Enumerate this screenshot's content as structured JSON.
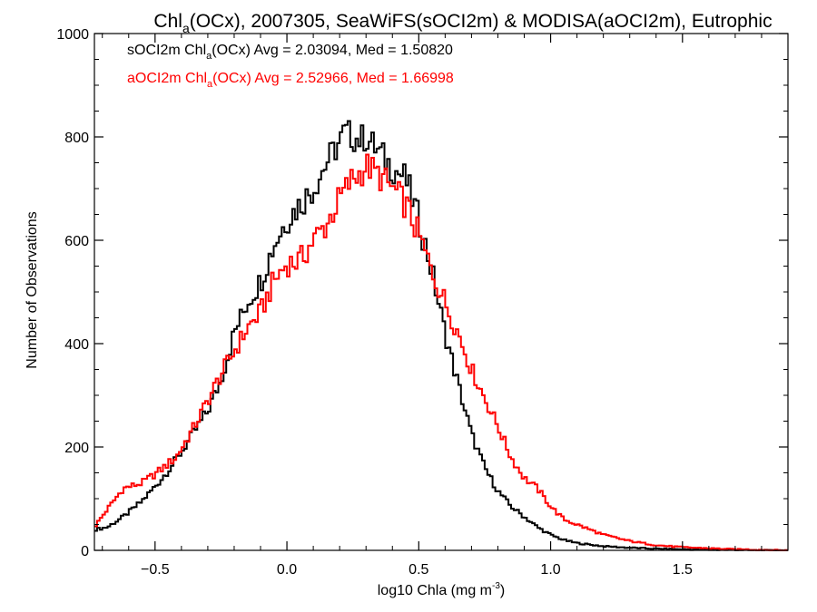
{
  "chart_data": {
    "type": "line",
    "step": true,
    "title": {
      "prefix": "Chl",
      "sub": "a",
      "suffix": "(OCx), 2007305, SeaWiFS(sOCI2m) & MODISA(aOCI2m), Eutrophic"
    },
    "xlabel": {
      "text": "log10 Chla (mg m",
      "sup": "-3",
      "close": ")"
    },
    "ylabel": "Number of Observations",
    "xlim": [
      -0.73,
      1.9
    ],
    "ylim": [
      0,
      1000
    ],
    "xticks": [
      -0.5,
      0.0,
      0.5,
      1.0,
      1.5
    ],
    "xtick_labels": [
      "−0.5",
      "0.0",
      "0.5",
      "1.0",
      "1.5"
    ],
    "yticks": [
      0,
      200,
      400,
      600,
      800,
      1000
    ],
    "ytick_labels": [
      "0",
      "200",
      "400",
      "600",
      "800",
      "1000"
    ],
    "legend_position": "top-left",
    "series": [
      {
        "label_prefix": "sOCI2m Chl",
        "label_sub": "a",
        "label_suffix": "(OCx) Avg = 2.03094, Med = 1.50820",
        "color": "#000000",
        "points": [
          [
            -0.73,
            40
          ],
          [
            -0.68,
            45
          ],
          [
            -0.62,
            65
          ],
          [
            -0.55,
            95
          ],
          [
            -0.48,
            135
          ],
          [
            -0.42,
            175
          ],
          [
            -0.35,
            230
          ],
          [
            -0.3,
            270
          ],
          [
            -0.25,
            330
          ],
          [
            -0.2,
            420
          ],
          [
            -0.15,
            480
          ],
          [
            -0.1,
            520
          ],
          [
            -0.05,
            590
          ],
          [
            0.0,
            640
          ],
          [
            0.05,
            670
          ],
          [
            0.1,
            700
          ],
          [
            0.15,
            750
          ],
          [
            0.2,
            790
          ],
          [
            0.22,
            810
          ],
          [
            0.25,
            800
          ],
          [
            0.28,
            795
          ],
          [
            0.3,
            800
          ],
          [
            0.35,
            770
          ],
          [
            0.4,
            740
          ],
          [
            0.45,
            720
          ],
          [
            0.5,
            640
          ],
          [
            0.55,
            540
          ],
          [
            0.6,
            420
          ],
          [
            0.65,
            320
          ],
          [
            0.7,
            225
          ],
          [
            0.75,
            160
          ],
          [
            0.8,
            115
          ],
          [
            0.85,
            85
          ],
          [
            0.9,
            65
          ],
          [
            0.95,
            45
          ],
          [
            1.0,
            30
          ],
          [
            1.05,
            20
          ],
          [
            1.1,
            14
          ],
          [
            1.2,
            8
          ],
          [
            1.3,
            5
          ],
          [
            1.4,
            3
          ],
          [
            1.5,
            2
          ],
          [
            1.6,
            1
          ],
          [
            1.7,
            1
          ],
          [
            1.8,
            0
          ],
          [
            1.9,
            0
          ]
        ]
      },
      {
        "label_prefix": "aOCI2m Chl",
        "label_sub": "a",
        "label_suffix": "(OCx) Avg = 2.52966, Med = 1.66998",
        "color": "#ff0000",
        "points": [
          [
            -0.73,
            45
          ],
          [
            -0.68,
            80
          ],
          [
            -0.62,
            120
          ],
          [
            -0.55,
            130
          ],
          [
            -0.48,
            155
          ],
          [
            -0.42,
            180
          ],
          [
            -0.35,
            240
          ],
          [
            -0.3,
            290
          ],
          [
            -0.25,
            340
          ],
          [
            -0.2,
            385
          ],
          [
            -0.15,
            430
          ],
          [
            -0.1,
            460
          ],
          [
            -0.05,
            520
          ],
          [
            0.0,
            555
          ],
          [
            0.05,
            560
          ],
          [
            0.1,
            600
          ],
          [
            0.15,
            630
          ],
          [
            0.2,
            680
          ],
          [
            0.25,
            720
          ],
          [
            0.28,
            730
          ],
          [
            0.3,
            745
          ],
          [
            0.35,
            725
          ],
          [
            0.4,
            700
          ],
          [
            0.45,
            670
          ],
          [
            0.5,
            610
          ],
          [
            0.55,
            540
          ],
          [
            0.6,
            480
          ],
          [
            0.65,
            420
          ],
          [
            0.7,
            350
          ],
          [
            0.75,
            295
          ],
          [
            0.8,
            240
          ],
          [
            0.85,
            180
          ],
          [
            0.9,
            140
          ],
          [
            0.95,
            120
          ],
          [
            1.0,
            85
          ],
          [
            1.05,
            60
          ],
          [
            1.1,
            50
          ],
          [
            1.2,
            30
          ],
          [
            1.3,
            18
          ],
          [
            1.4,
            10
          ],
          [
            1.5,
            6
          ],
          [
            1.6,
            4
          ],
          [
            1.7,
            2
          ],
          [
            1.8,
            1
          ],
          [
            1.9,
            0
          ]
        ]
      }
    ]
  }
}
